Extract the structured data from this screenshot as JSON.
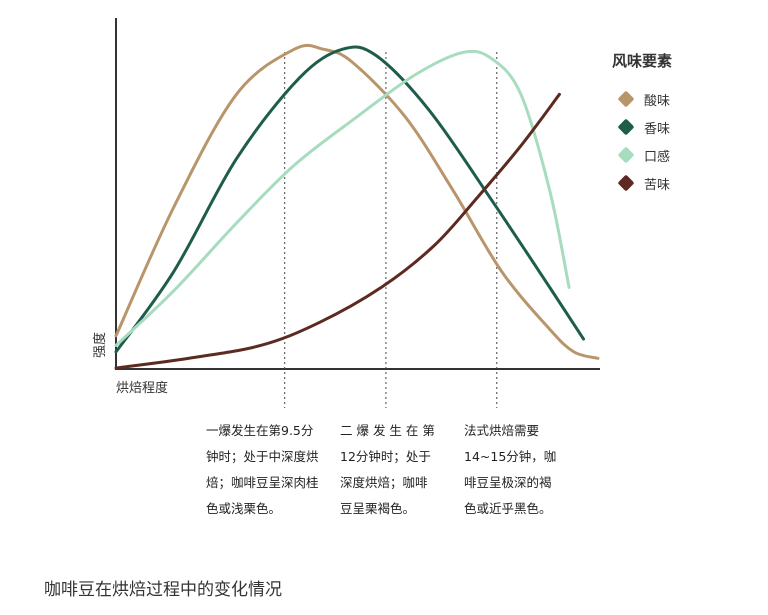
{
  "chart_data": {
    "type": "line",
    "xlabel": "烘焙程度",
    "ylabel": "强度",
    "legend_title": "风味要素",
    "legend_position": "right",
    "grid": false,
    "xlim": [
      0,
      100
    ],
    "ylim": [
      0,
      100
    ],
    "series": [
      {
        "name": "酸味",
        "color": "#b8956b",
        "x": [
          0,
          12,
          25,
          37,
          43,
          49,
          60,
          70,
          80,
          90,
          95,
          100
        ],
        "y": [
          10,
          50,
          85,
          99,
          99,
          95,
          78,
          55,
          30,
          12,
          5,
          3
        ]
      },
      {
        "name": "香味",
        "color": "#1e5c4b",
        "x": [
          0,
          12,
          25,
          38,
          47,
          54,
          65,
          78,
          90,
          97
        ],
        "y": [
          5,
          30,
          65,
          90,
          99,
          97,
          80,
          52,
          25,
          9
        ]
      },
      {
        "name": "口感",
        "color": "#a8dcbe",
        "x": [
          0,
          12,
          25,
          37,
          50,
          62,
          72,
          78,
          84,
          90,
          94
        ],
        "y": [
          7,
          24,
          45,
          63,
          78,
          91,
          98,
          96,
          85,
          55,
          25
        ]
      },
      {
        "name": "苦味",
        "color": "#5c2a20",
        "x": [
          0,
          15,
          30,
          42,
          55,
          66,
          75,
          84,
          92
        ],
        "y": [
          0,
          3,
          7,
          14,
          25,
          38,
          53,
          69,
          85
        ]
      }
    ],
    "vlines": [
      35,
      56,
      79
    ]
  },
  "notes": [
    [
      "一爆发生在第9.5分",
      "钟时；处于中深度烘",
      "焙；咖啡豆呈深肉桂",
      "色或浅栗色。"
    ],
    [
      "二 爆 发 生 在 第",
      "12分钟时；处于",
      "深度烘焙；咖啡",
      "豆呈栗褐色。"
    ],
    [
      "法式烘焙需要",
      "14~15分钟，咖",
      "啡豆呈极深的褐",
      "色或近乎黑色。"
    ]
  ],
  "caption": "咖啡豆在烘焙过程中的变化情况"
}
